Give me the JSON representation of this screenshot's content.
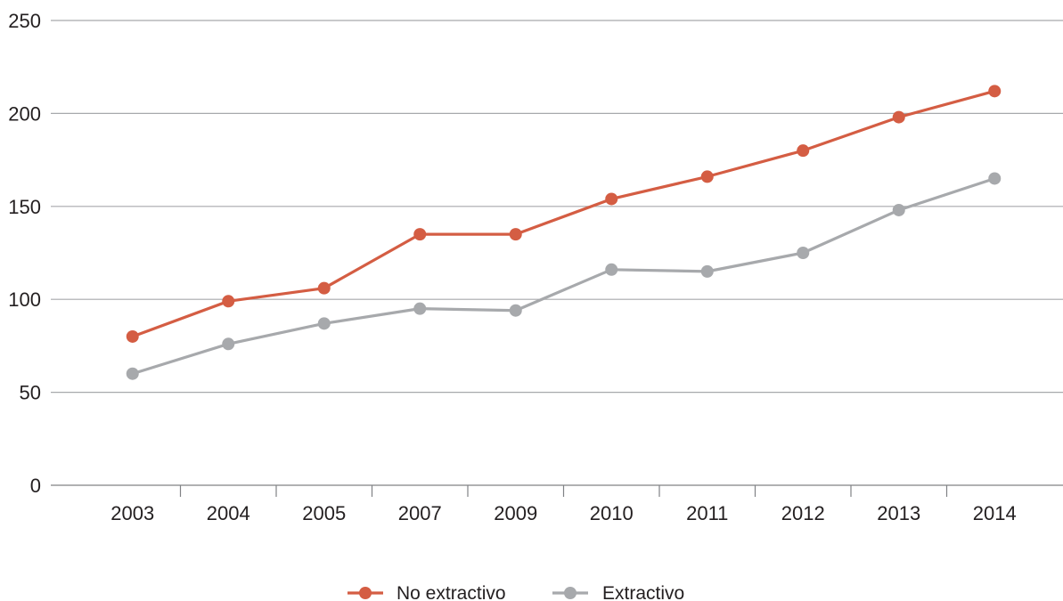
{
  "chart_data": {
    "type": "line",
    "title": "",
    "xlabel": "",
    "ylabel": "",
    "categories": [
      "2003",
      "2004",
      "2005",
      "2007",
      "2009",
      "2010",
      "2011",
      "2012",
      "2013",
      "2014"
    ],
    "ylim": [
      0,
      250
    ],
    "yticks": [
      0,
      50,
      100,
      150,
      200,
      250
    ],
    "grid": true,
    "legend_position": "bottom-center",
    "series": [
      {
        "name": "No extractivo",
        "color": "#d45d43",
        "values": [
          80,
          99,
          106,
          135,
          135,
          154,
          166,
          180,
          198,
          212
        ]
      },
      {
        "name": "Extractivo",
        "color": "#a7a9ac",
        "values": [
          60,
          76,
          87,
          95,
          94,
          116,
          115,
          125,
          148,
          165
        ]
      }
    ]
  }
}
